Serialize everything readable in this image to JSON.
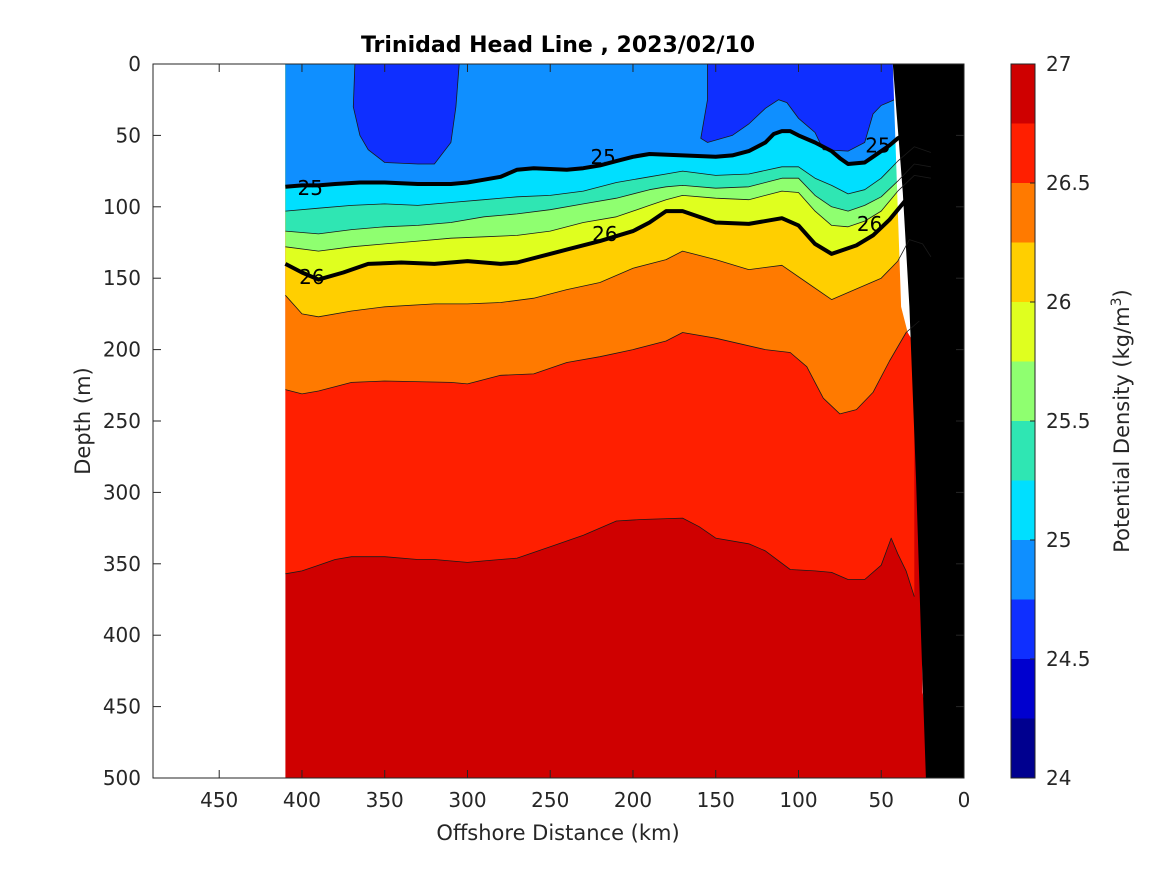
{
  "chart_data": {
    "type": "contour",
    "title": "Trinidad Head Line , 2023/02/10",
    "xlabel": "Offshore Distance (km)",
    "ylabel": "Depth (m)",
    "colorbar_label": "Potential Density (kg/m",
    "colorbar_label_superscript": "3",
    "colorbar_label_suffix": ")",
    "xlim": [
      490,
      0
    ],
    "ylim": [
      0,
      500
    ],
    "x_ticks": [
      450,
      400,
      350,
      300,
      250,
      200,
      150,
      100,
      50,
      0
    ],
    "y_ticks": [
      0,
      50,
      100,
      150,
      200,
      250,
      300,
      350,
      400,
      450,
      500
    ],
    "colorbar_range": [
      24,
      27
    ],
    "colorbar_ticks": [
      24,
      24.5,
      25,
      25.5,
      26,
      26.5,
      27
    ],
    "colorbar_step": 0.25,
    "colorbar_colors": [
      "#00008f",
      "#0000cf",
      "#0f2fff",
      "#0f8fff",
      "#00dfff",
      "#2fe6b3",
      "#8fff70",
      "#dfff1f",
      "#ffcf00",
      "#ff7a00",
      "#ff1f00",
      "#cf0000"
    ],
    "section_x_range": [
      410,
      20
    ],
    "bathymetry_color": "#000000",
    "contour_labels": [
      {
        "text": "25",
        "x": 395,
        "y": 87
      },
      {
        "text": "25",
        "x": 218,
        "y": 65
      },
      {
        "text": "25",
        "x": 52,
        "y": 57
      },
      {
        "text": "26",
        "x": 394,
        "y": 149
      },
      {
        "text": "26",
        "x": 217,
        "y": 119
      },
      {
        "text": "26",
        "x": 57,
        "y": 112
      }
    ],
    "isopycnals": [
      {
        "level": 26.75,
        "depth": [
          [
            410,
            357
          ],
          [
            400,
            355
          ],
          [
            390,
            351
          ],
          [
            380,
            347
          ],
          [
            370,
            345
          ],
          [
            350,
            345
          ],
          [
            330,
            347
          ],
          [
            320,
            347
          ],
          [
            300,
            349
          ],
          [
            290,
            348
          ],
          [
            270,
            346
          ],
          [
            250,
            338
          ],
          [
            230,
            330
          ],
          [
            210,
            320
          ],
          [
            195,
            319
          ],
          [
            170,
            318
          ],
          [
            160,
            324
          ],
          [
            150,
            332
          ],
          [
            130,
            336
          ],
          [
            120,
            341
          ],
          [
            105,
            354
          ],
          [
            90,
            355
          ],
          [
            80,
            356
          ],
          [
            70,
            361
          ],
          [
            60,
            361
          ],
          [
            50,
            351
          ],
          [
            44,
            332
          ],
          [
            40,
            343
          ],
          [
            35,
            355
          ],
          [
            30,
            373
          ]
        ]
      },
      {
        "level": 26.5,
        "depth": [
          [
            410,
            228
          ],
          [
            400,
            231
          ],
          [
            390,
            229
          ],
          [
            370,
            223
          ],
          [
            350,
            222
          ],
          [
            310,
            223
          ],
          [
            300,
            224
          ],
          [
            280,
            218
          ],
          [
            260,
            217
          ],
          [
            240,
            209
          ],
          [
            220,
            205
          ],
          [
            200,
            200
          ],
          [
            180,
            194
          ],
          [
            170,
            188
          ],
          [
            150,
            192
          ],
          [
            120,
            200
          ],
          [
            105,
            202
          ],
          [
            95,
            212
          ],
          [
            85,
            234
          ],
          [
            75,
            245
          ],
          [
            65,
            242
          ],
          [
            55,
            230
          ],
          [
            45,
            208
          ],
          [
            35,
            188
          ],
          [
            27,
            180
          ]
        ]
      },
      {
        "level": 26.25,
        "depth": [
          [
            410,
            162
          ],
          [
            400,
            175
          ],
          [
            390,
            177
          ],
          [
            370,
            173
          ],
          [
            350,
            170
          ],
          [
            320,
            168
          ],
          [
            300,
            168
          ],
          [
            280,
            167
          ],
          [
            260,
            164
          ],
          [
            240,
            158
          ],
          [
            220,
            153
          ],
          [
            200,
            143
          ],
          [
            180,
            137
          ],
          [
            170,
            131
          ],
          [
            150,
            137
          ],
          [
            130,
            144
          ],
          [
            110,
            141
          ],
          [
            95,
            153
          ],
          [
            80,
            165
          ],
          [
            70,
            160
          ],
          [
            50,
            150
          ],
          [
            40,
            138
          ],
          [
            33,
            123
          ],
          [
            25,
            126
          ],
          [
            20,
            135
          ]
        ]
      },
      {
        "level": 26.0,
        "depth": [
          [
            410,
            140
          ],
          [
            400,
            146
          ],
          [
            390,
            151
          ],
          [
            375,
            146
          ],
          [
            360,
            140
          ],
          [
            340,
            139
          ],
          [
            320,
            140
          ],
          [
            300,
            138
          ],
          [
            280,
            140
          ],
          [
            270,
            139
          ],
          [
            240,
            130
          ],
          [
            220,
            124
          ],
          [
            200,
            117
          ],
          [
            190,
            111
          ],
          [
            180,
            103
          ],
          [
            170,
            103
          ],
          [
            150,
            111
          ],
          [
            130,
            112
          ],
          [
            110,
            108
          ],
          [
            100,
            113
          ],
          [
            90,
            126
          ],
          [
            80,
            133
          ],
          [
            65,
            127
          ],
          [
            55,
            120
          ],
          [
            45,
            109
          ],
          [
            35,
            95
          ],
          [
            30,
            87
          ],
          [
            20,
            85
          ]
        ]
      },
      {
        "level": 25.75,
        "depth": [
          [
            410,
            128
          ],
          [
            390,
            131
          ],
          [
            370,
            128
          ],
          [
            350,
            126
          ],
          [
            330,
            124
          ],
          [
            310,
            122
          ],
          [
            290,
            121
          ],
          [
            270,
            120
          ],
          [
            250,
            117
          ],
          [
            230,
            111
          ],
          [
            210,
            107
          ],
          [
            190,
            99
          ],
          [
            180,
            95
          ],
          [
            170,
            92
          ],
          [
            150,
            94
          ],
          [
            130,
            95
          ],
          [
            110,
            89
          ],
          [
            100,
            90
          ],
          [
            90,
            103
          ],
          [
            80,
            113
          ],
          [
            70,
            114
          ],
          [
            60,
            110
          ],
          [
            50,
            103
          ],
          [
            40,
            89
          ],
          [
            30,
            78
          ],
          [
            20,
            80
          ]
        ]
      },
      {
        "level": 25.5,
        "depth": [
          [
            410,
            117
          ],
          [
            390,
            119
          ],
          [
            370,
            116
          ],
          [
            350,
            114
          ],
          [
            330,
            113
          ],
          [
            310,
            111
          ],
          [
            290,
            107
          ],
          [
            270,
            105
          ],
          [
            250,
            102
          ],
          [
            230,
            98
          ],
          [
            210,
            94
          ],
          [
            190,
            88
          ],
          [
            180,
            86
          ],
          [
            170,
            85
          ],
          [
            150,
            87
          ],
          [
            130,
            86
          ],
          [
            110,
            80
          ],
          [
            100,
            80
          ],
          [
            90,
            92
          ],
          [
            80,
            100
          ],
          [
            70,
            103
          ],
          [
            60,
            99
          ],
          [
            50,
            93
          ],
          [
            40,
            82
          ],
          [
            30,
            70
          ],
          [
            20,
            72
          ]
        ]
      },
      {
        "level": 25.25,
        "depth": [
          [
            410,
            103
          ],
          [
            390,
            101
          ],
          [
            370,
            99
          ],
          [
            350,
            98
          ],
          [
            330,
            99
          ],
          [
            310,
            97
          ],
          [
            290,
            95
          ],
          [
            270,
            93
          ],
          [
            250,
            92
          ],
          [
            230,
            89
          ],
          [
            210,
            83
          ],
          [
            190,
            79
          ],
          [
            180,
            77
          ],
          [
            170,
            75
          ],
          [
            150,
            78
          ],
          [
            130,
            77
          ],
          [
            110,
            72
          ],
          [
            100,
            72
          ],
          [
            90,
            80
          ],
          [
            80,
            85
          ],
          [
            70,
            91
          ],
          [
            60,
            88
          ],
          [
            50,
            80
          ],
          [
            40,
            68
          ],
          [
            30,
            58
          ],
          [
            20,
            62
          ]
        ]
      },
      {
        "level": 25.0,
        "depth": [
          [
            410,
            86
          ],
          [
            400,
            85
          ],
          [
            390,
            85
          ],
          [
            380,
            84
          ],
          [
            365,
            83
          ],
          [
            350,
            83
          ],
          [
            330,
            84
          ],
          [
            310,
            84
          ],
          [
            300,
            83
          ],
          [
            290,
            81
          ],
          [
            280,
            79
          ],
          [
            270,
            74
          ],
          [
            260,
            73
          ],
          [
            240,
            74
          ],
          [
            230,
            73
          ],
          [
            220,
            71
          ],
          [
            210,
            68
          ],
          [
            200,
            65
          ],
          [
            190,
            63
          ],
          [
            170,
            64
          ],
          [
            150,
            65
          ],
          [
            140,
            64
          ],
          [
            130,
            61
          ],
          [
            120,
            55
          ],
          [
            115,
            49
          ],
          [
            110,
            47
          ],
          [
            105,
            47
          ],
          [
            100,
            50
          ],
          [
            90,
            55
          ],
          [
            80,
            61
          ],
          [
            75,
            66
          ],
          [
            70,
            70
          ],
          [
            60,
            69
          ],
          [
            55,
            65
          ],
          [
            45,
            57
          ],
          [
            40,
            52
          ],
          [
            30,
            46
          ],
          [
            20,
            42
          ]
        ]
      }
    ],
    "shallow_patches": [
      {
        "level": 24.75,
        "polygon": [
          [
            368,
            0
          ],
          [
            369,
            30
          ],
          [
            365,
            50
          ],
          [
            360,
            60
          ],
          [
            350,
            69
          ],
          [
            330,
            70
          ],
          [
            320,
            70
          ],
          [
            310,
            55
          ],
          [
            307,
            30
          ],
          [
            305,
            0
          ]
        ]
      },
      {
        "level": 24.75,
        "polygon": [
          [
            155,
            0
          ],
          [
            155,
            25
          ],
          [
            159,
            52
          ],
          [
            155,
            55
          ],
          [
            140,
            50
          ],
          [
            130,
            42
          ],
          [
            120,
            31
          ],
          [
            112,
            25
          ],
          [
            107,
            27
          ],
          [
            100,
            38
          ],
          [
            90,
            48
          ],
          [
            85,
            60
          ],
          [
            70,
            61
          ],
          [
            60,
            55
          ],
          [
            55,
            35
          ],
          [
            50,
            29
          ],
          [
            42,
            25
          ],
          [
            30,
            27
          ],
          [
            20,
            29
          ],
          [
            20,
            0
          ]
        ]
      },
      {
        "level": 24.5,
        "polygon": [
          [
            42,
            0
          ],
          [
            42,
            5
          ],
          [
            38,
            7
          ],
          [
            32,
            8
          ],
          [
            28,
            10
          ],
          [
            20,
            10
          ],
          [
            20,
            0
          ]
        ]
      }
    ],
    "bathymetry": [
      [
        0,
        0
      ],
      [
        0,
        500
      ],
      [
        23,
        500
      ],
      [
        26,
        400
      ],
      [
        29,
        290
      ],
      [
        33,
        170
      ],
      [
        37,
        90
      ],
      [
        39,
        60
      ],
      [
        41,
        30
      ],
      [
        43,
        0
      ]
    ],
    "data_mask": [
      [
        20,
        500
      ],
      [
        21,
        470
      ],
      [
        25,
        440
      ],
      [
        28,
        200
      ],
      [
        34,
        188
      ],
      [
        38,
        170
      ],
      [
        43,
        0
      ],
      [
        0,
        0
      ],
      [
        0,
        500
      ]
    ]
  }
}
